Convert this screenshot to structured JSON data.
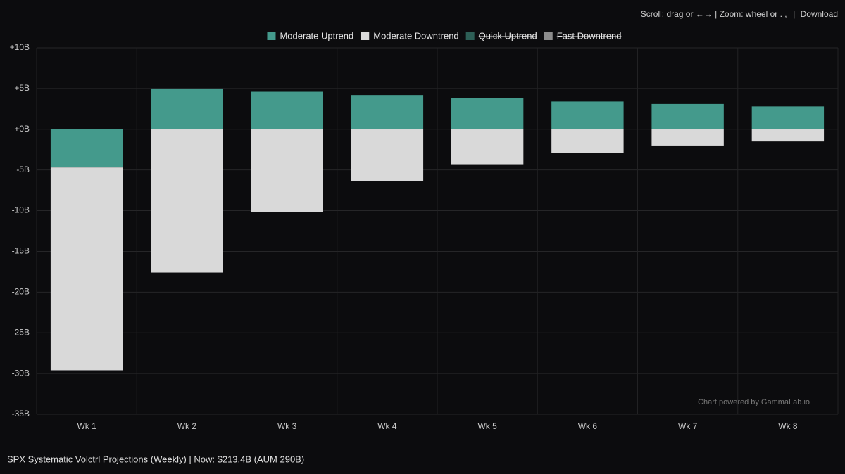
{
  "controls_hint": "Scroll: drag or ←→ | Zoom: wheel or . ,",
  "separator": "|",
  "download": "Download",
  "footer": "SPX Systematic Volctrl Projections (Weekly) | Now: $213.4B (AUM 290B)",
  "watermark": "Chart powered by GammaLab.io",
  "chart_data": {
    "type": "stacked_bar",
    "categories": [
      "Wk 1",
      "Wk 2",
      "Wk 3",
      "Wk 4",
      "Wk 5",
      "Wk 6",
      "Wk 7",
      "Wk 8"
    ],
    "series": [
      {
        "name": "Moderate Uptrend",
        "color": "#449a8c",
        "hidden": false,
        "values": [
          -4.7,
          5.0,
          4.6,
          4.2,
          3.8,
          3.4,
          3.1,
          2.8
        ]
      },
      {
        "name": "Moderate Downtrend",
        "color": "#d9d9d9",
        "hidden": false,
        "values": [
          -24.9,
          -17.6,
          -10.2,
          -6.4,
          -4.3,
          -2.9,
          -2.0,
          -1.5
        ]
      },
      {
        "name": "Quick Uptrend",
        "color": "#2d5f56",
        "hidden": true,
        "values": [
          null,
          null,
          null,
          null,
          null,
          null,
          null,
          null
        ]
      },
      {
        "name": "Fast Downtrend",
        "color": "#8c8c8c",
        "hidden": true,
        "values": [
          null,
          null,
          null,
          null,
          null,
          null,
          null,
          null
        ]
      }
    ],
    "ylim": [
      -35,
      10
    ],
    "yticks": [
      {
        "value": -35,
        "label": "-35B"
      },
      {
        "value": -30,
        "label": "-30B"
      },
      {
        "value": -25,
        "label": "-25B"
      },
      {
        "value": -20,
        "label": "-20B"
      },
      {
        "value": -15,
        "label": "-15B"
      },
      {
        "value": -10,
        "label": "-10B"
      },
      {
        "value": -5,
        "label": "-5B"
      },
      {
        "value": 0,
        "label": "+0B"
      },
      {
        "value": 5,
        "label": "+5B"
      },
      {
        "value": 10,
        "label": "+10B"
      }
    ],
    "grid": true,
    "legend": "top"
  }
}
